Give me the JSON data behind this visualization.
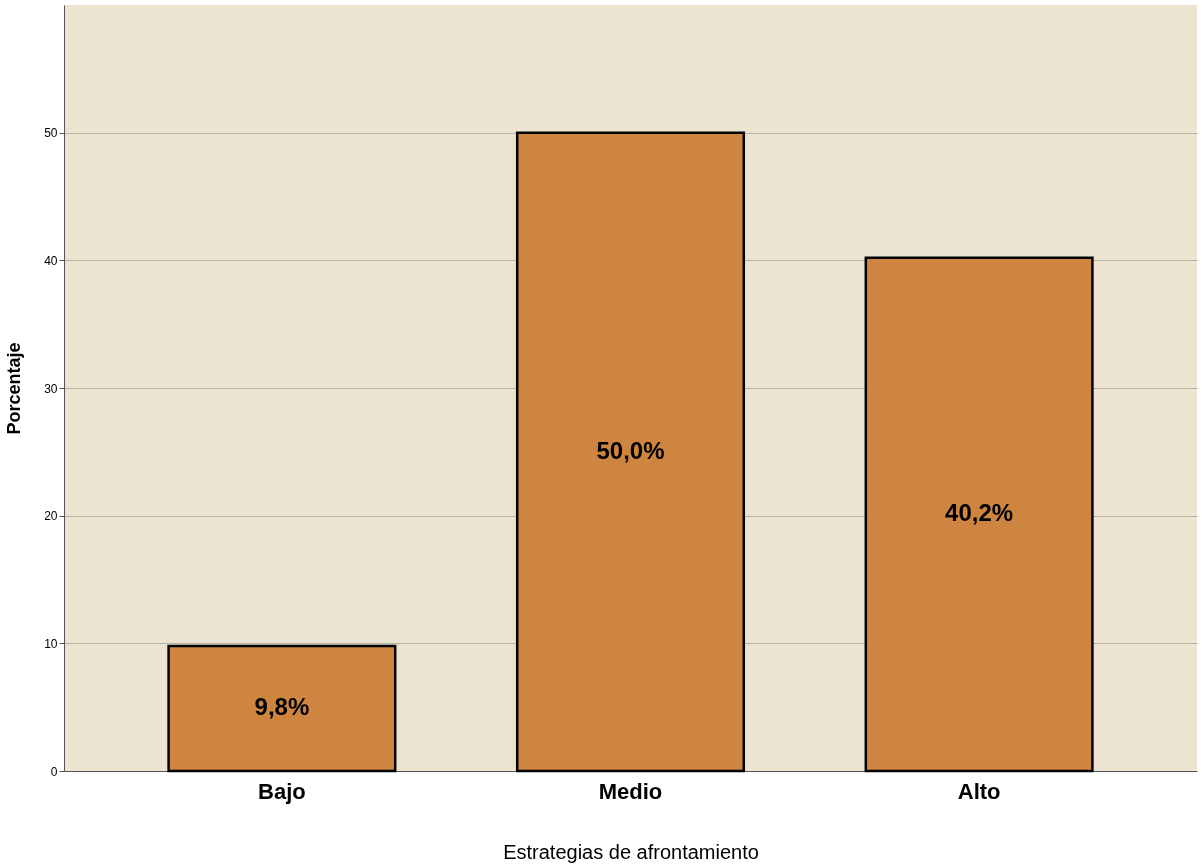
{
  "chart_data": {
    "type": "bar",
    "xlabel": "Estrategias de afrontamiento",
    "ylabel": "Porcentaje",
    "categories": [
      "Bajo",
      "Medio",
      "Alto"
    ],
    "values": [
      9.8,
      50.0,
      40.2
    ],
    "value_labels": [
      "9,8%",
      "50,0%",
      "40,2%"
    ],
    "color": "#cd853f",
    "ylim": [
      0,
      60
    ],
    "yticks": [
      0,
      10,
      20,
      30,
      40,
      50
    ],
    "grid": "y"
  }
}
